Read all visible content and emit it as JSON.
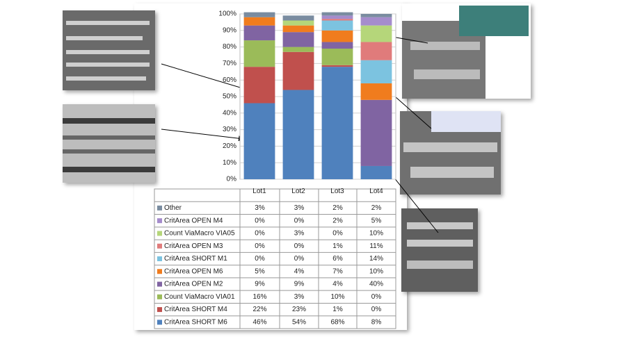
{
  "chart_data": {
    "type": "stacked-bar",
    "categories": [
      "Lot1",
      "Lot2",
      "Lot3",
      "Lot4"
    ],
    "ylim": [
      0,
      100
    ],
    "yticks": [
      {
        "value": 0,
        "label": "0%"
      },
      {
        "value": 10,
        "label": "10%"
      },
      {
        "value": 20,
        "label": "20%"
      },
      {
        "value": 30,
        "label": "30%"
      },
      {
        "value": 40,
        "label": "40%"
      },
      {
        "value": 50,
        "label": "50%"
      },
      {
        "value": 60,
        "label": "60%"
      },
      {
        "value": 70,
        "label": "70%"
      },
      {
        "value": 80,
        "label": "80%"
      },
      {
        "value": 90,
        "label": "90%"
      },
      {
        "value": 100,
        "label": "100%"
      }
    ],
    "series": [
      {
        "name": "CritArea SHORT M6",
        "color": "#4f81bd",
        "values": [
          46,
          54,
          68,
          8
        ],
        "value_labels": [
          "46%",
          "54%",
          "68%",
          "8%"
        ]
      },
      {
        "name": "CritArea SHORT M4",
        "color": "#c0504d",
        "values": [
          22,
          23,
          1,
          0
        ],
        "value_labels": [
          "22%",
          "23%",
          "1%",
          "0%"
        ]
      },
      {
        "name": "Count ViaMacro VIA01",
        "color": "#9bbb59",
        "values": [
          16,
          3,
          10,
          0
        ],
        "value_labels": [
          "16%",
          "3%",
          "10%",
          "0%"
        ]
      },
      {
        "name": "CritArea OPEN M2",
        "color": "#8064a2",
        "values": [
          9,
          9,
          4,
          40
        ],
        "value_labels": [
          "9%",
          "9%",
          "4%",
          "40%"
        ]
      },
      {
        "name": "CritArea OPEN M6",
        "color": "#f07c1e",
        "values": [
          5,
          4,
          7,
          10
        ],
        "value_labels": [
          "5%",
          "4%",
          "7%",
          "10%"
        ]
      },
      {
        "name": "CritArea SHORT M1",
        "color": "#7cc3e0",
        "values": [
          0,
          0,
          6,
          14
        ],
        "value_labels": [
          "0%",
          "0%",
          "6%",
          "14%"
        ]
      },
      {
        "name": "CritArea OPEN M3",
        "color": "#e07b7b",
        "values": [
          0,
          0,
          1,
          11
        ],
        "value_labels": [
          "0%",
          "0%",
          "1%",
          "11%"
        ]
      },
      {
        "name": "Count ViaMacro VIA05",
        "color": "#b5d67a",
        "values": [
          0,
          3,
          0,
          10
        ],
        "value_labels": [
          "0%",
          "3%",
          "0%",
          "10%"
        ]
      },
      {
        "name": "CritArea OPEN M4",
        "color": "#a58ccc",
        "values": [
          0,
          0,
          2,
          5
        ],
        "value_labels": [
          "0%",
          "0%",
          "2%",
          "5%"
        ]
      },
      {
        "name": "Other",
        "color": "#7a8ca0",
        "values": [
          3,
          3,
          2,
          2
        ],
        "value_labels": [
          "3%",
          "3%",
          "2%",
          "2%"
        ]
      }
    ]
  }
}
